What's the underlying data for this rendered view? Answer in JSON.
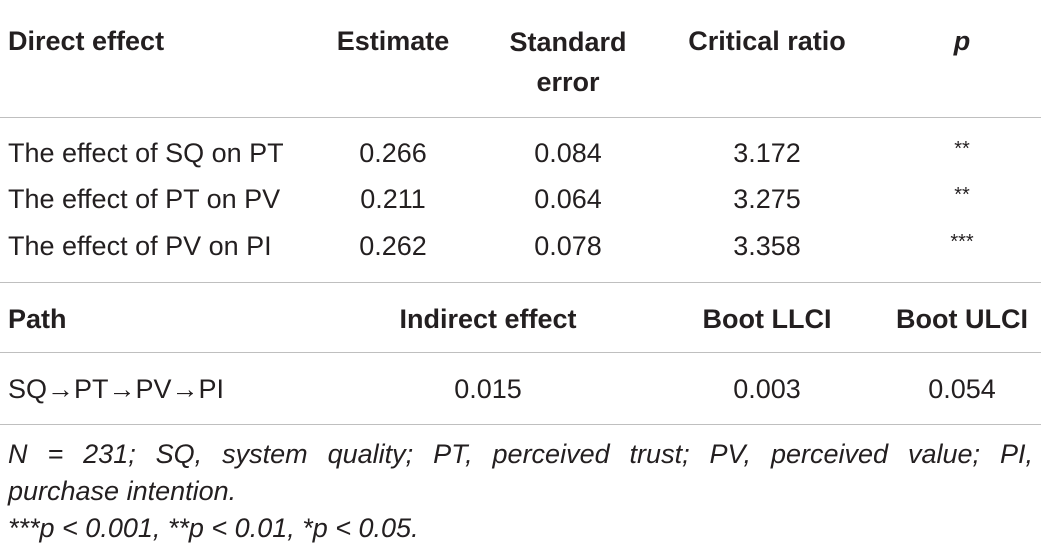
{
  "table1": {
    "headers": [
      "Direct effect",
      "Estimate",
      "Standard error",
      "Critical ratio",
      "p"
    ],
    "rows": [
      [
        "The effect of SQ on PT",
        "0.266",
        "0.084",
        "3.172",
        "**"
      ],
      [
        "The effect of PT on PV",
        "0.211",
        "0.064",
        "3.275",
        "**"
      ],
      [
        "The effect of PV on PI",
        "0.262",
        "0.078",
        "3.358",
        "***"
      ]
    ]
  },
  "table2": {
    "headers": [
      "Path",
      "Indirect effect",
      "Boot LLCI",
      "Boot ULCI"
    ],
    "rows": [
      [
        "SQ→PT→PV→PI",
        "0.015",
        "0.003",
        "0.054"
      ]
    ]
  },
  "notes": {
    "line1": "N = 231; SQ, system quality; PT, perceived trust; PV, perceived value; PI,",
    "line2": "purchase intention.",
    "line3": "***p < 0.001, **p < 0.01, *p < 0.05."
  }
}
